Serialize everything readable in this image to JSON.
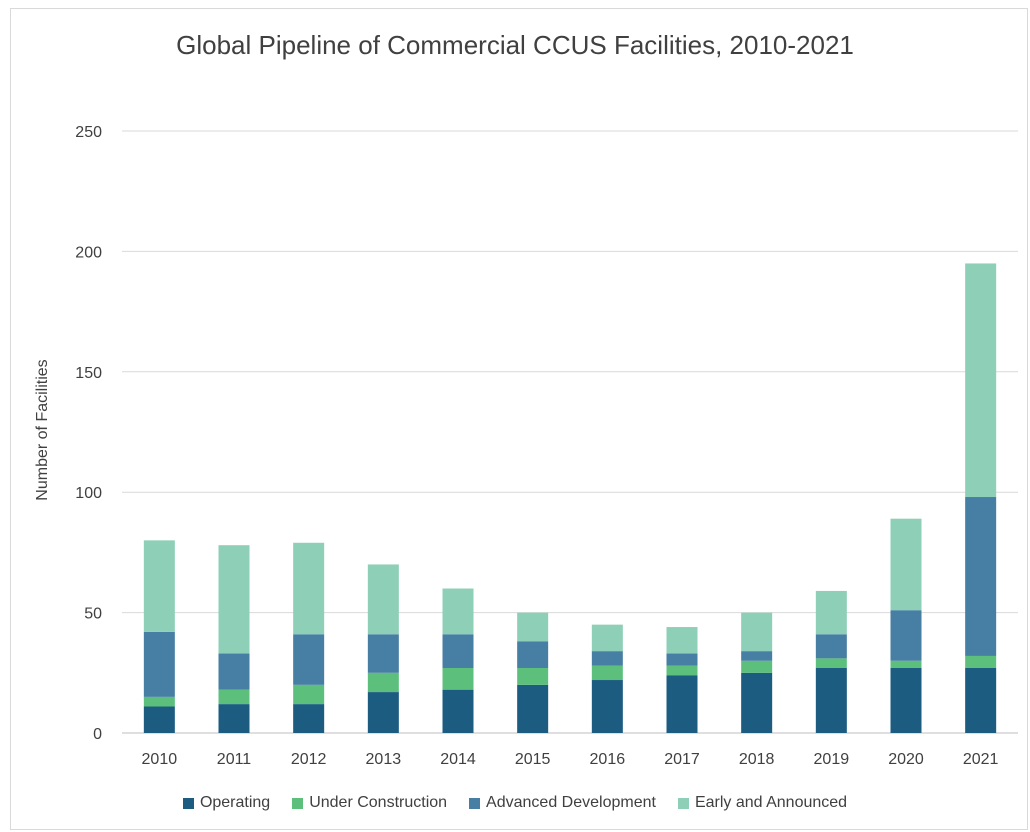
{
  "chart_data": {
    "type": "bar",
    "stacked": true,
    "title": "Global Pipeline of Commercial CCUS Facilities, 2010-2021",
    "xlabel": "",
    "ylabel": "Number of Facilities",
    "ylim": [
      0,
      250
    ],
    "yticks": [
      0,
      50,
      100,
      150,
      200,
      250
    ],
    "grid": true,
    "legend_position": "bottom",
    "categories": [
      "2010",
      "2011",
      "2012",
      "2013",
      "2014",
      "2015",
      "2016",
      "2017",
      "2018",
      "2019",
      "2020",
      "2021"
    ],
    "series": [
      {
        "name": "Operating",
        "color": "#1b5c80",
        "values": [
          11,
          12,
          12,
          17,
          18,
          20,
          22,
          24,
          25,
          27,
          27,
          27
        ]
      },
      {
        "name": "Under Construction",
        "color": "#5cbf7c",
        "values": [
          4,
          6,
          8,
          8,
          9,
          7,
          6,
          4,
          5,
          4,
          3,
          5
        ]
      },
      {
        "name": "Advanced Development",
        "color": "#467fa3",
        "values": [
          27,
          15,
          21,
          16,
          14,
          11,
          6,
          5,
          4,
          10,
          21,
          66
        ]
      },
      {
        "name": "Early and Announced",
        "color": "#8ecfb7",
        "values": [
          38,
          45,
          38,
          29,
          19,
          12,
          11,
          11,
          16,
          18,
          38,
          97
        ]
      }
    ]
  }
}
